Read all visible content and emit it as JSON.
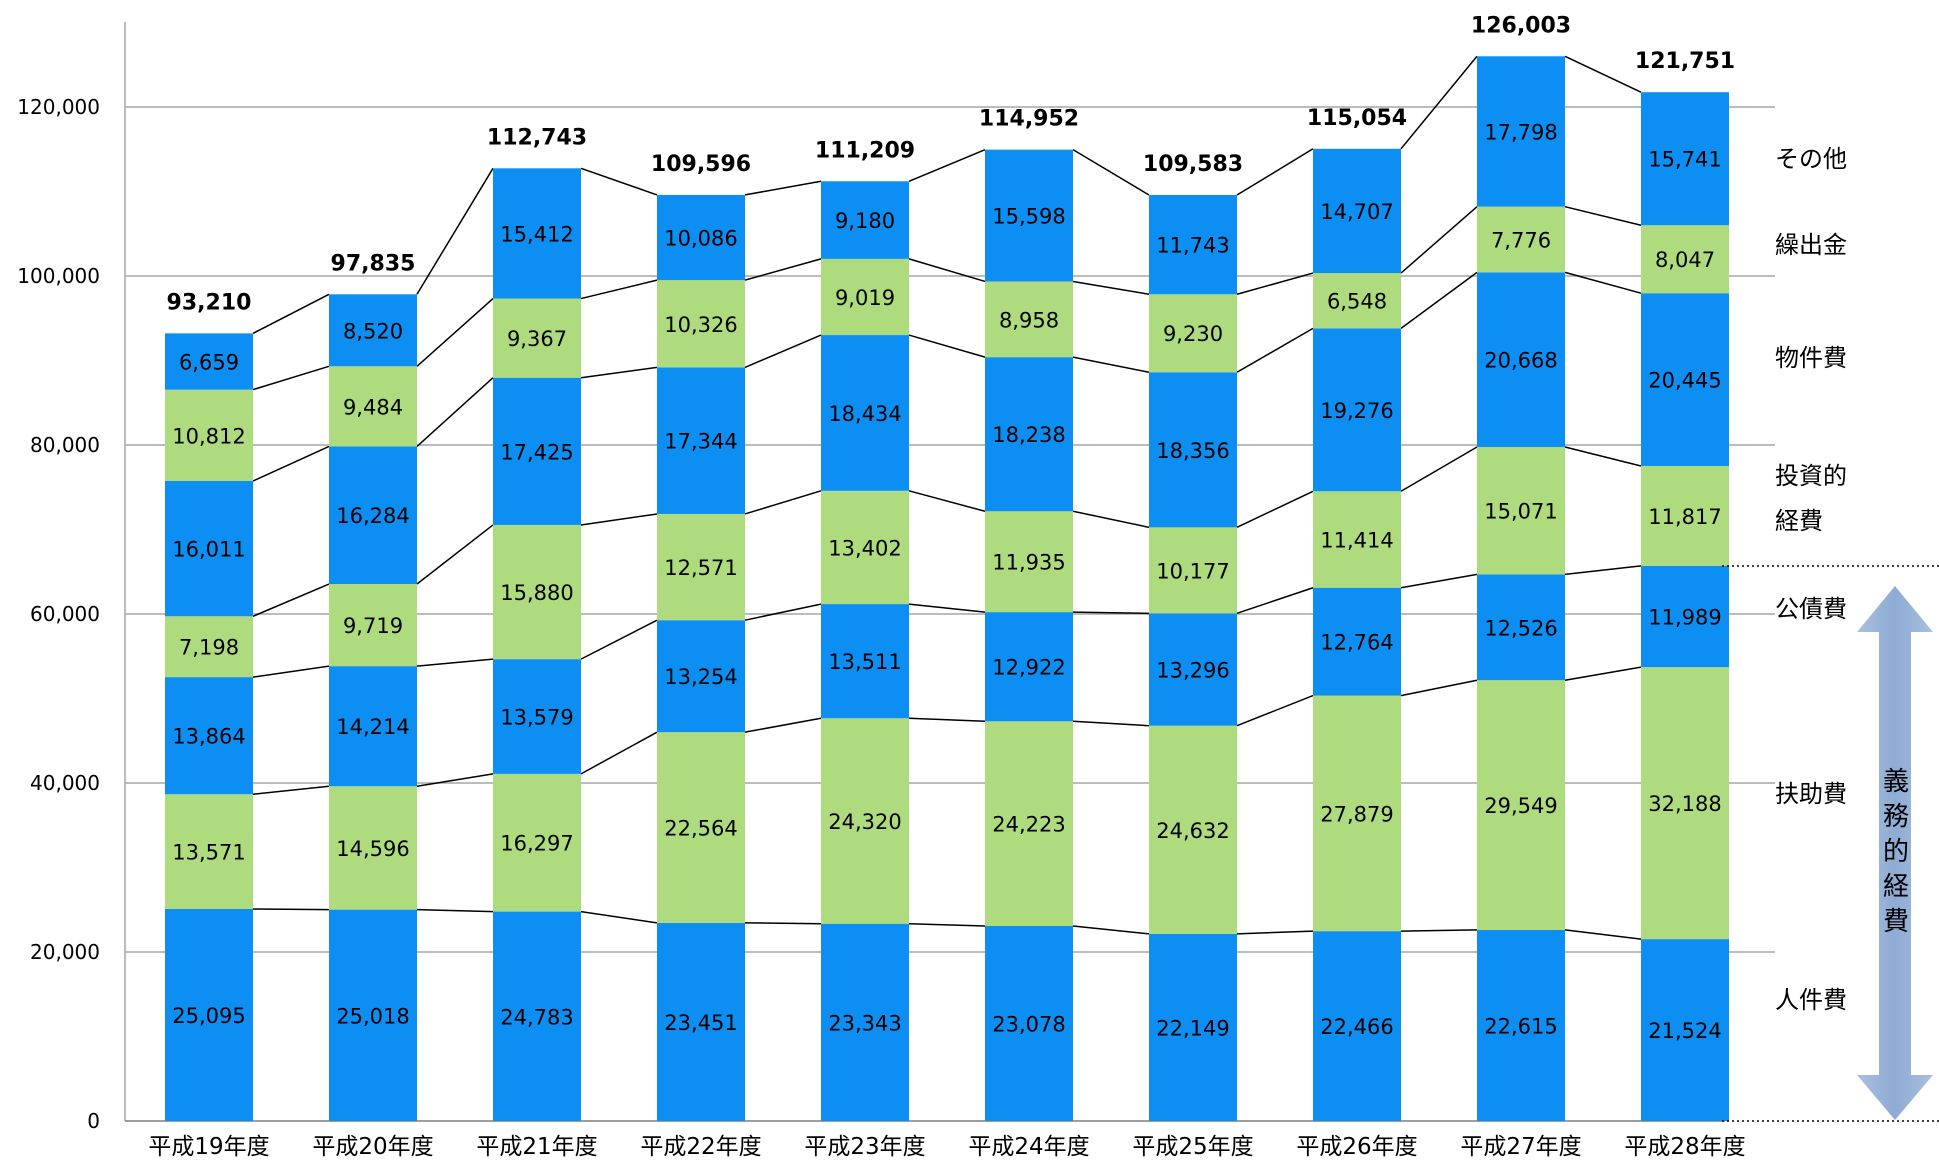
{
  "chart_data": {
    "type": "bar",
    "stacked": true,
    "categories": [
      "平成19年度",
      "平成20年度",
      "平成21年度",
      "平成22年度",
      "平成23年度",
      "平成24年度",
      "平成25年度",
      "平成26年度",
      "平成27年度",
      "平成28年度"
    ],
    "series": [
      {
        "name": "人件費",
        "color": "#0D8EF2",
        "values": [
          25095,
          25018,
          24783,
          23451,
          23343,
          23078,
          22149,
          22466,
          22615,
          21524
        ]
      },
      {
        "name": "扶助費",
        "color": "#AEDB7E",
        "values": [
          13571,
          14596,
          16297,
          22564,
          24320,
          24223,
          24632,
          27879,
          29549,
          32188
        ]
      },
      {
        "name": "公債費",
        "color": "#0D8EF2",
        "values": [
          13864,
          14214,
          13579,
          13254,
          13511,
          12922,
          13296,
          12764,
          12526,
          11989
        ]
      },
      {
        "name": "投資的経費",
        "color": "#AEDB7E",
        "values": [
          7198,
          9719,
          15880,
          12571,
          13402,
          11935,
          10177,
          11414,
          15071,
          11817
        ]
      },
      {
        "name": "物件費",
        "color": "#0D8EF2",
        "values": [
          16011,
          16284,
          17425,
          17344,
          18434,
          18238,
          18356,
          19276,
          20668,
          20445
        ]
      },
      {
        "name": "繰出金",
        "color": "#AEDB7E",
        "values": [
          10812,
          9484,
          9367,
          10326,
          9019,
          8958,
          9230,
          6548,
          7776,
          8047
        ]
      },
      {
        "name": "その他",
        "color": "#0D8EF2",
        "values": [
          6659,
          8520,
          15412,
          10086,
          9180,
          15598,
          11743,
          14707,
          17798,
          15741
        ]
      }
    ],
    "totals": [
      93210,
      97835,
      112743,
      109596,
      111209,
      114952,
      109583,
      115054,
      126003,
      121751
    ],
    "series_labels": [
      "人件費",
      "扶助費",
      "公債費",
      "投資的",
      "経費",
      "物件費",
      "繰出金",
      "その他"
    ],
    "group_label": "義務的経費",
    "ylim": [
      0,
      130000
    ],
    "yticks": [
      0,
      20000,
      40000,
      60000,
      80000,
      100000,
      120000
    ],
    "ytick_labels": [
      "0",
      "20,000",
      "40,000",
      "60,000",
      "80,000",
      "100,000",
      "120,000"
    ],
    "grid": true,
    "arrow_color": "#9BB5D8"
  }
}
